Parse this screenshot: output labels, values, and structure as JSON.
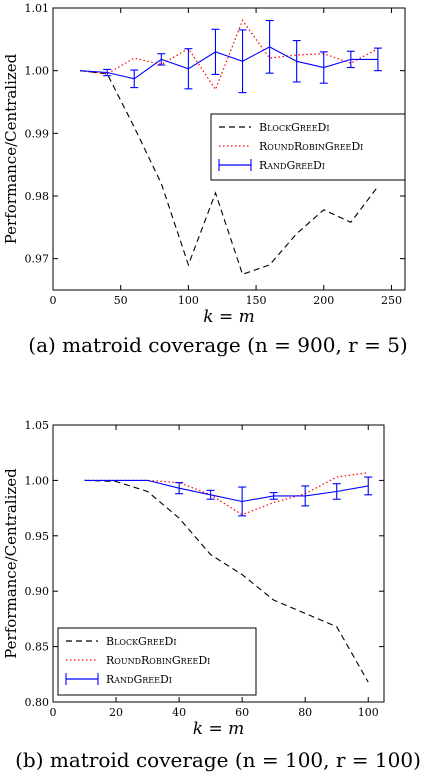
{
  "chart_data": [
    {
      "type": "line",
      "ylabel": "Performance/Centralized",
      "xlabel": "k = m",
      "caption": "(a)  matroid coverage (n = 900, r = 5)",
      "xlim": [
        0,
        260
      ],
      "ylim": [
        0.965,
        1.01
      ],
      "xticks": [
        0,
        50,
        100,
        150,
        200,
        250
      ],
      "yticks": [
        0.97,
        0.98,
        0.99,
        1.0,
        1.01
      ],
      "ytick_labels": [
        "0.97",
        "0.98",
        "0.99",
        "1.00",
        "1.01"
      ],
      "legend_position": "center-right",
      "x": [
        20,
        40,
        60,
        80,
        100,
        120,
        140,
        160,
        180,
        200,
        220,
        240
      ],
      "series": [
        {
          "name": "BlockGreeDi",
          "style": "dashed",
          "color": "#000000",
          "x": [
            20,
            40,
            60,
            80,
            100,
            120,
            140,
            160,
            180,
            200,
            220,
            240
          ],
          "values": [
            1.0,
            0.9995,
            0.991,
            0.982,
            0.969,
            0.9805,
            0.9675,
            0.969,
            0.974,
            0.9778,
            0.9758,
            0.9815
          ]
        },
        {
          "name": "RoundRobinGreeDi",
          "style": "dotted",
          "color": "#ff0000",
          "x": [
            20,
            40,
            60,
            80,
            100,
            120,
            140,
            160,
            180,
            200,
            220,
            240
          ],
          "values": [
            1.0,
            0.9995,
            1.002,
            1.001,
            1.0035,
            0.997,
            1.008,
            1.002,
            1.0025,
            1.0027,
            1.0012,
            1.0035
          ]
        },
        {
          "name": "RandGreeDi",
          "style": "solid",
          "color": "#0000ff",
          "x": [
            20,
            40,
            60,
            80,
            100,
            120,
            140,
            160,
            180,
            200,
            220,
            240
          ],
          "values": [
            1.0,
            0.9997,
            0.9987,
            1.0018,
            1.0003,
            1.003,
            1.0015,
            1.0038,
            1.0015,
            1.0005,
            1.0018,
            1.0018
          ],
          "errors": [
            0,
            0.0005,
            0.0014,
            0.0009,
            0.0032,
            0.0036,
            0.005,
            0.0042,
            0.0033,
            0.0025,
            0.0013,
            0.0018
          ]
        }
      ]
    },
    {
      "type": "line",
      "ylabel": "Performance/Centralized",
      "xlabel": "k = m",
      "caption": "(b)  matroid coverage (n = 100, r = 100)",
      "xlim": [
        0,
        105
      ],
      "ylim": [
        0.8,
        1.05
      ],
      "xticks": [
        0,
        20,
        40,
        60,
        80,
        100
      ],
      "yticks": [
        0.8,
        0.85,
        0.9,
        0.95,
        1.0,
        1.05
      ],
      "ytick_labels": [
        "0.80",
        "0.85",
        "0.90",
        "0.95",
        "1.00",
        "1.05"
      ],
      "legend_position": "bottom-left",
      "series": [
        {
          "name": "BlockGreeDi",
          "style": "dashed",
          "color": "#000000",
          "x": [
            10,
            20,
            30,
            40,
            50,
            60,
            70,
            80,
            90,
            100
          ],
          "values": [
            1.0,
            0.999,
            0.99,
            0.966,
            0.933,
            0.915,
            0.892,
            0.88,
            0.868,
            0.818
          ]
        },
        {
          "name": "RoundRobinGreeDi",
          "style": "dotted",
          "color": "#ff0000",
          "x": [
            10,
            20,
            30,
            40,
            50,
            60,
            70,
            80,
            90,
            100
          ],
          "values": [
            1.0,
            1.0,
            1.0,
            0.998,
            0.987,
            0.969,
            0.98,
            0.988,
            1.003,
            1.007
          ]
        },
        {
          "name": "RandGreeDi",
          "style": "solid",
          "color": "#0000ff",
          "x": [
            10,
            20,
            30,
            40,
            50,
            60,
            70,
            80,
            90,
            100
          ],
          "values": [
            1.0,
            1.0,
            1.0,
            0.993,
            0.987,
            0.981,
            0.986,
            0.986,
            0.99,
            0.995
          ],
          "errors": [
            0,
            0,
            0,
            0.005,
            0.004,
            0.013,
            0.003,
            0.009,
            0.007,
            0.008
          ]
        }
      ]
    }
  ]
}
